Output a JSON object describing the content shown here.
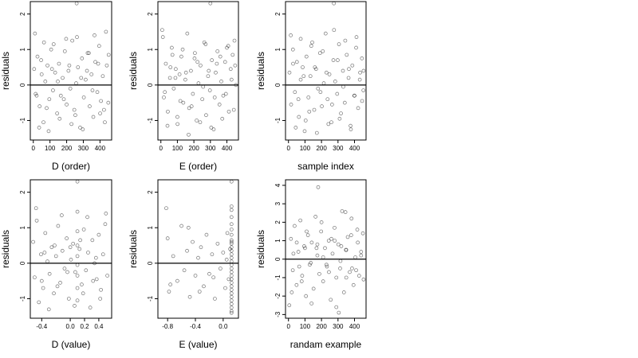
{
  "chart_data": [
    {
      "type": "scatter",
      "xlabel": "D (order)",
      "ylabel": "residuals",
      "xlim": [
        -18,
        470
      ],
      "ylim": [
        -1.55,
        2.35
      ],
      "xticks": [
        0,
        100,
        200,
        300,
        400
      ],
      "xtick_labels": [
        "0",
        "100",
        "200",
        "300",
        "400"
      ],
      "yticks": [
        -1,
        0,
        1,
        2
      ],
      "ytick_labels": [
        "-1",
        "0",
        "1",
        "2"
      ],
      "hline": 0,
      "grid": false,
      "x": [
        5,
        14,
        25,
        38,
        50,
        61,
        72,
        85,
        96,
        107,
        118,
        131,
        143,
        154,
        165,
        176,
        189,
        200,
        211,
        222,
        234,
        246,
        257,
        268,
        281,
        292,
        303,
        314,
        326,
        338,
        349,
        360,
        372,
        384,
        395,
        406,
        417,
        429,
        441,
        452,
        10,
        35,
        64,
        92,
        122,
        158,
        197,
        229,
        262,
        297,
        333,
        367,
        401,
        436,
        450,
        20,
        47,
        80,
        112,
        147,
        183,
        216,
        252,
        287,
        322,
        355,
        389,
        424,
        260
      ],
      "y": [
        0.45,
        -0.25,
        0.8,
        -0.6,
        0.3,
        -1.05,
        0.1,
        0.55,
        -0.4,
        1.0,
        -0.15,
        0.35,
        -0.8,
        0.6,
        -0.3,
        0.2,
        0.95,
        -0.55,
        0.4,
        -0.1,
        1.25,
        -0.7,
        0.05,
        0.5,
        -1.2,
        0.75,
        -0.35,
        0.15,
        0.9,
        -0.6,
        0.3,
        -0.9,
        0.65,
        -0.2,
        1.1,
        -0.45,
        0.25,
        -1.05,
        0.55,
        0.85,
        1.45,
        -1.2,
        1.2,
        -1.3,
        1.15,
        -0.95,
        1.3,
        -1.1,
        1.35,
        -1.25,
        0.9,
        1.4,
        -0.8,
        1.5,
        -0.5,
        -0.3,
        0.7,
        -0.65,
        0.45,
        0.1,
        -0.4,
        0.55,
        -0.85,
        0.2,
        0.4,
        -0.15,
        0.6,
        -0.7,
        2.3
      ]
    },
    {
      "type": "scatter",
      "xlabel": "E (order)",
      "ylabel": "residuals",
      "xlim": [
        -18,
        470
      ],
      "ylim": [
        -1.55,
        2.35
      ],
      "xticks": [
        0,
        100,
        200,
        300,
        400
      ],
      "xtick_labels": [
        "0",
        "100",
        "200",
        "300",
        "400"
      ],
      "yticks": [
        -1,
        0,
        1,
        2
      ],
      "ytick_labels": [
        "-1",
        "0",
        "1",
        "2"
      ],
      "hline": 0,
      "grid": false,
      "x": [
        8,
        18,
        30,
        42,
        55,
        66,
        78,
        90,
        101,
        113,
        124,
        136,
        148,
        160,
        171,
        182,
        194,
        206,
        217,
        228,
        240,
        251,
        263,
        274,
        286,
        297,
        309,
        320,
        332,
        343,
        355,
        366,
        378,
        389,
        400,
        412,
        423,
        435,
        446,
        455,
        12,
        40,
        70,
        100,
        132,
        168,
        204,
        238,
        271,
        305,
        339,
        372,
        408,
        442,
        24,
        58,
        88,
        118,
        152,
        186,
        222,
        256,
        290,
        326,
        360,
        394,
        428,
        450,
        300
      ],
      "y": [
        1.55,
        -0.35,
        0.6,
        -0.75,
        0.2,
        1.05,
        -0.1,
        0.45,
        -1.1,
        0.3,
        0.8,
        -0.5,
        0.15,
        1.45,
        -0.65,
        0.4,
        -0.25,
        0.9,
        -1.0,
        0.05,
        0.55,
        -0.4,
        1.2,
        -0.85,
        0.25,
        -0.15,
        0.7,
        -1.25,
        0.35,
        0.95,
        -0.55,
        0.1,
        -0.3,
        0.65,
        1.05,
        -0.75,
        0.45,
        0.85,
        1.25,
        0.0,
        1.35,
        -1.15,
        0.85,
        -0.9,
        1.0,
        -1.4,
        0.75,
        -1.05,
        1.15,
        -1.2,
        0.6,
        -0.95,
        1.1,
        -0.7,
        -0.2,
        0.5,
        0.2,
        -0.45,
        0.35,
        -0.6,
        0.65,
        -0.05,
        0.4,
        -0.35,
        0.8,
        -0.25,
        0.15,
        0.55,
        2.3
      ]
    },
    {
      "type": "scatter",
      "xlabel": "sample index",
      "ylabel": "residuals",
      "xlim": [
        -18,
        470
      ],
      "ylim": [
        -1.55,
        2.35
      ],
      "xticks": [
        0,
        100,
        200,
        300,
        400
      ],
      "xtick_labels": [
        "0",
        "100",
        "200",
        "300",
        "400"
      ],
      "yticks": [
        -1,
        0,
        1,
        2
      ],
      "ytick_labels": [
        "-1",
        "0",
        "1",
        "2"
      ],
      "hline": 0,
      "grid": false,
      "x": [
        6,
        16,
        27,
        39,
        51,
        63,
        74,
        86,
        98,
        109,
        121,
        133,
        144,
        156,
        167,
        179,
        191,
        202,
        214,
        225,
        237,
        248,
        260,
        272,
        283,
        295,
        306,
        318,
        330,
        341,
        353,
        364,
        376,
        387,
        399,
        410,
        422,
        434,
        445,
        454,
        14,
        44,
        74,
        104,
        138,
        172,
        208,
        242,
        276,
        310,
        344,
        378,
        412,
        446,
        28,
        60,
        92,
        126,
        160,
        194,
        230,
        264,
        298,
        332,
        366,
        400,
        432,
        455,
        275
      ],
      "y": [
        0.35,
        -0.55,
        1.0,
        -0.2,
        0.65,
        -0.9,
        0.15,
        0.5,
        -1.3,
        0.8,
        -0.35,
        0.25,
        1.2,
        -0.7,
        0.45,
        -0.1,
        0.9,
        -0.6,
        0.05,
        1.45,
        -0.4,
        0.3,
        -1.05,
        0.7,
        0.1,
        -0.25,
        1.15,
        -0.8,
        0.4,
        -0.5,
        0.85,
        0.2,
        -1.15,
        0.55,
        -0.3,
        1.05,
        -0.65,
        0.35,
        0.75,
        -0.15,
        1.4,
        -1.2,
        1.3,
        -1.0,
        1.1,
        -1.35,
        0.95,
        -1.1,
        1.55,
        -0.95,
        1.25,
        -1.25,
        1.35,
        -0.45,
        0.6,
        -0.4,
        0.25,
        -0.75,
        0.5,
        -0.2,
        0.35,
        -0.55,
        0.7,
        -0.05,
        0.45,
        -0.3,
        0.15,
        0.4,
        2.3
      ]
    },
    {
      "type": "scatter",
      "xlabel": "D (value)",
      "ylabel": "residuals",
      "xlim": [
        -0.56,
        0.58
      ],
      "ylim": [
        -1.55,
        2.35
      ],
      "xticks": [
        -0.4,
        0.0,
        0.2,
        0.4
      ],
      "xtick_labels": [
        "-0.4",
        "0.0",
        "0.2",
        "0.4"
      ],
      "yticks": [
        -1,
        0,
        1,
        2
      ],
      "ytick_labels": [
        "-1",
        "0",
        "1",
        "2"
      ],
      "hline": 0,
      "grid": false,
      "x": [
        -0.52,
        -0.5,
        -0.47,
        -0.44,
        -0.41,
        -0.38,
        -0.35,
        -0.32,
        -0.29,
        -0.26,
        -0.23,
        -0.2,
        -0.17,
        -0.14,
        -0.11,
        -0.08,
        -0.05,
        -0.02,
        0.01,
        0.04,
        0.07,
        0.1,
        0.1,
        0.1,
        0.1,
        0.1,
        0.1,
        0.1,
        0.1,
        0.13,
        0.16,
        0.19,
        0.22,
        0.25,
        0.28,
        0.31,
        0.34,
        0.37,
        0.4,
        0.43,
        0.46,
        0.49,
        0.52,
        -0.48,
        -0.3,
        -0.12,
        0.06,
        0.24,
        0.42,
        -0.4,
        -0.22,
        -0.04,
        0.14,
        0.32,
        0.5,
        -0.36,
        -0.18,
        0.0,
        0.18,
        0.36,
        0.1
      ],
      "y": [
        0.6,
        -0.4,
        1.2,
        -1.1,
        0.25,
        -0.7,
        0.85,
        0.05,
        -0.3,
        0.45,
        -0.85,
        0.2,
        1.05,
        -0.55,
        0.35,
        -0.15,
        0.7,
        -1.0,
        0.1,
        0.55,
        -0.25,
        1.45,
        0.9,
        0.5,
        0.2,
        -0.05,
        -0.35,
        -0.7,
        -1.05,
        0.4,
        -0.6,
        0.95,
        -0.2,
        0.3,
        -1.25,
        0.65,
        0.0,
        -0.45,
        0.8,
        -0.75,
        0.25,
        1.1,
        -0.35,
        1.55,
        -1.3,
        1.35,
        -1.2,
        1.3,
        -1.0,
        -0.5,
        0.5,
        -0.25,
        0.65,
        -0.5,
        1.4,
        0.3,
        -0.65,
        0.45,
        -0.85,
        0.15,
        2.3
      ]
    },
    {
      "type": "scatter",
      "xlabel": "E (value)",
      "ylabel": "residuals",
      "xlim": [
        -0.94,
        0.22
      ],
      "ylim": [
        -1.55,
        2.35
      ],
      "xticks": [
        -0.8,
        -0.4,
        0.0
      ],
      "xtick_labels": [
        "-0.8",
        "-0.4",
        "0.0"
      ],
      "yticks": [
        -1,
        0,
        1,
        2
      ],
      "ytick_labels": [
        "-1",
        "0",
        "1",
        "2"
      ],
      "hline": 0,
      "grid": false,
      "x": [
        -0.82,
        -0.8,
        -0.78,
        -0.72,
        -0.66,
        -0.6,
        -0.56,
        -0.52,
        -0.48,
        -0.44,
        -0.4,
        -0.36,
        -0.32,
        -0.28,
        -0.24,
        -0.2,
        -0.16,
        -0.12,
        -0.08,
        -0.04,
        0.0,
        0.03,
        0.06,
        0.08,
        0.1,
        0.12,
        0.12,
        0.12,
        0.12,
        0.12,
        0.12,
        0.12,
        0.12,
        0.12,
        0.12,
        0.12,
        0.12,
        0.12,
        0.12,
        0.12,
        0.12,
        0.12,
        0.12,
        0.12,
        0.12,
        0.12,
        0.12,
        0.12,
        0.12,
        0.12,
        0.12,
        0.12,
        0.12,
        -0.76,
        -0.5,
        -0.34,
        -0.14,
        0.05,
        0.12,
        0.12
      ],
      "y": [
        1.55,
        0.7,
        -0.8,
        0.2,
        -0.5,
        1.05,
        -0.2,
        0.35,
        -0.95,
        0.6,
        -0.35,
        0.15,
        0.45,
        -0.65,
        0.8,
        -0.3,
        0.25,
        -1.0,
        0.55,
        -0.15,
        0.3,
        -0.7,
        0.85,
        -0.45,
        0.4,
        1.5,
        1.3,
        1.1,
        0.95,
        0.8,
        0.65,
        0.55,
        0.45,
        0.35,
        0.25,
        0.15,
        0.05,
        -0.05,
        -0.15,
        -0.25,
        -0.35,
        -0.45,
        -0.55,
        -0.65,
        -0.75,
        -0.85,
        -0.95,
        -1.05,
        -1.15,
        -1.25,
        -1.35,
        1.6,
        0.6,
        -0.6,
        1.0,
        -0.8,
        -0.4,
        0.1,
        -1.4,
        2.3
      ]
    },
    {
      "type": "scatter",
      "xlabel": "randam example",
      "ylabel": "residuals",
      "xlim": [
        -18,
        470
      ],
      "ylim": [
        -3.2,
        4.3
      ],
      "xticks": [
        0,
        100,
        200,
        300,
        400
      ],
      "xtick_labels": [
        "0",
        "100",
        "200",
        "300",
        "400"
      ],
      "yticks": [
        -3,
        -2,
        -1,
        0,
        1,
        2,
        3,
        4
      ],
      "ytick_labels": [
        "-3",
        "-2",
        "-1",
        "0",
        "1",
        "2",
        "3",
        "4"
      ],
      "hline": 0,
      "grid": false,
      "x": [
        5,
        15,
        26,
        37,
        49,
        60,
        72,
        83,
        95,
        106,
        118,
        129,
        141,
        152,
        164,
        175,
        187,
        198,
        210,
        221,
        233,
        244,
        256,
        267,
        279,
        290,
        302,
        313,
        325,
        336,
        348,
        359,
        371,
        382,
        394,
        405,
        417,
        428,
        440,
        451,
        20,
        50,
        80,
        110,
        140,
        170,
        200,
        230,
        260,
        290,
        320,
        350,
        380,
        410,
        440,
        30,
        65,
        100,
        135,
        175,
        210,
        245,
        280,
        315,
        350,
        385,
        420,
        455,
        180,
        305,
        345
      ],
      "y": [
        -2.5,
        1.1,
        -0.6,
        1.8,
        -1.4,
        0.4,
        2.1,
        -0.9,
        0.7,
        -2.0,
        1.3,
        -0.3,
        0.9,
        -1.6,
        2.3,
        0.2,
        -0.8,
        1.5,
        -1.2,
        0.6,
        -0.4,
        1.0,
        -2.2,
        0.3,
        1.7,
        -1.0,
        0.8,
        -0.5,
        2.6,
        -1.8,
        0.5,
        1.2,
        -0.7,
        2.2,
        -1.4,
        0.1,
        1.6,
        -0.9,
        0.4,
        1.4,
        -1.8,
        0.9,
        -1.2,
        1.5,
        -2.4,
        0.6,
        2.0,
        -0.3,
        1.1,
        -2.6,
        0.7,
        -1.0,
        1.3,
        -0.6,
        0.2,
        0.3,
        -0.4,
        0.6,
        -0.2,
        0.8,
        0.1,
        -0.7,
        1.0,
        -0.1,
        0.5,
        -0.5,
        0.9,
        -1.1,
        3.9,
        -2.9,
        2.55
      ]
    }
  ]
}
